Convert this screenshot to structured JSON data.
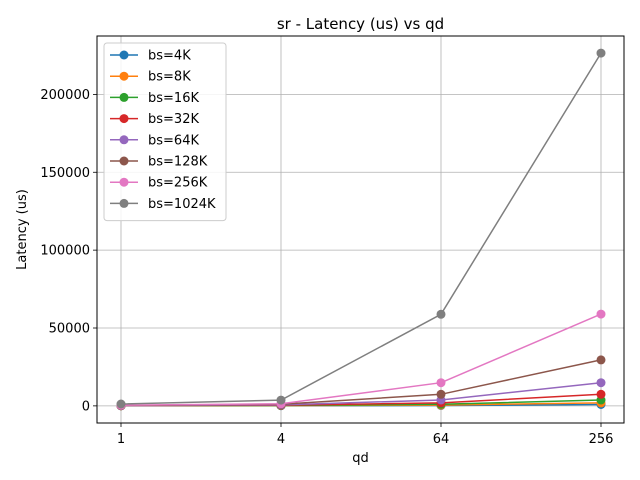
{
  "chart_data": {
    "type": "line",
    "title": "sr - Latency (us) vs qd",
    "xlabel": "qd",
    "ylabel": "Latency (us)",
    "categories": [
      "1",
      "4",
      "64",
      "256"
    ],
    "ylim": [
      -11000,
      237500
    ],
    "yticks": [
      0,
      50000,
      100000,
      150000,
      200000
    ],
    "grid": true,
    "legend_position": "top-left",
    "series": [
      {
        "name": "bs=4K",
        "color": "#1f77b4",
        "values": [
          60,
          120,
          250,
          900
        ]
      },
      {
        "name": "bs=8K",
        "color": "#ff7f0e",
        "values": [
          80,
          180,
          500,
          1900
        ]
      },
      {
        "name": "bs=16K",
        "color": "#2ca02c",
        "values": [
          100,
          250,
          1000,
          3800
        ]
      },
      {
        "name": "bs=32K",
        "color": "#d62728",
        "values": [
          130,
          400,
          1900,
          7400
        ]
      },
      {
        "name": "bs=64K",
        "color": "#9467bd",
        "values": [
          180,
          600,
          3800,
          14900
        ]
      },
      {
        "name": "bs=128K",
        "color": "#8c564b",
        "values": [
          250,
          1000,
          7400,
          29500
        ]
      },
      {
        "name": "bs=256K",
        "color": "#e377c2",
        "values": [
          400,
          1300,
          14900,
          58900
        ]
      },
      {
        "name": "bs=1024K",
        "color": "#7f7f7f",
        "values": [
          1200,
          3700,
          58800,
          226500
        ]
      }
    ]
  }
}
